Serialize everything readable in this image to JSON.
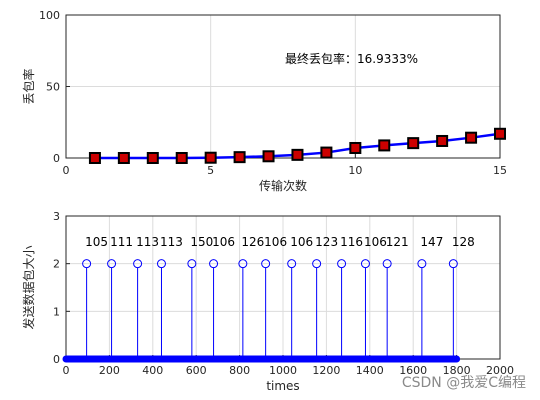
{
  "chart_data": [
    {
      "type": "line",
      "x": [
        1,
        2,
        3,
        4,
        5,
        6,
        7,
        8,
        9,
        10,
        11,
        12,
        13,
        14,
        15
      ],
      "series": [
        {
          "values": [
            0,
            0,
            0,
            0,
            0.2,
            0.6,
            1.2,
            2.2,
            3.8,
            7.0,
            8.8,
            10.4,
            11.9,
            14.2,
            16.9333
          ]
        }
      ],
      "xlim": [
        0,
        15
      ],
      "ylim": [
        0,
        100
      ],
      "xticks": [
        "0",
        "5",
        "10",
        "15"
      ],
      "yticks": [
        "0",
        "50",
        "100"
      ],
      "xlabel": "传输次数",
      "ylabel": "丢包率",
      "annotation": "最终丢包率：16.9333%",
      "grid": true,
      "line_color": "#0000ff",
      "marker_color": "#cc0000"
    },
    {
      "type": "stem",
      "x": [
        95,
        210,
        330,
        440,
        580,
        680,
        815,
        920,
        1040,
        1155,
        1270,
        1380,
        1480,
        1640,
        1785
      ],
      "values": [
        2,
        2,
        2,
        2,
        2,
        2,
        2,
        2,
        2,
        2,
        2,
        2,
        2,
        2,
        2
      ],
      "data_labels": [
        "105",
        "111",
        "113",
        "113",
        "150",
        "106",
        "126",
        "106",
        "106",
        "123",
        "116",
        "106",
        "121",
        "147",
        "128"
      ],
      "baseline_points_x_range": [
        0,
        1800
      ],
      "xlim": [
        0,
        2000
      ],
      "ylim": [
        0,
        3
      ],
      "xticks": [
        "0",
        "200",
        "400",
        "600",
        "800",
        "1000",
        "1200",
        "1400",
        "1600",
        "1800",
        "2000"
      ],
      "yticks": [
        "0",
        "1",
        "2",
        "3"
      ],
      "xlabel": "times",
      "ylabel": "发送数据包大小",
      "grid": true,
      "color": "#0000ff"
    }
  ],
  "watermark": "CSDN @我爱C编程"
}
